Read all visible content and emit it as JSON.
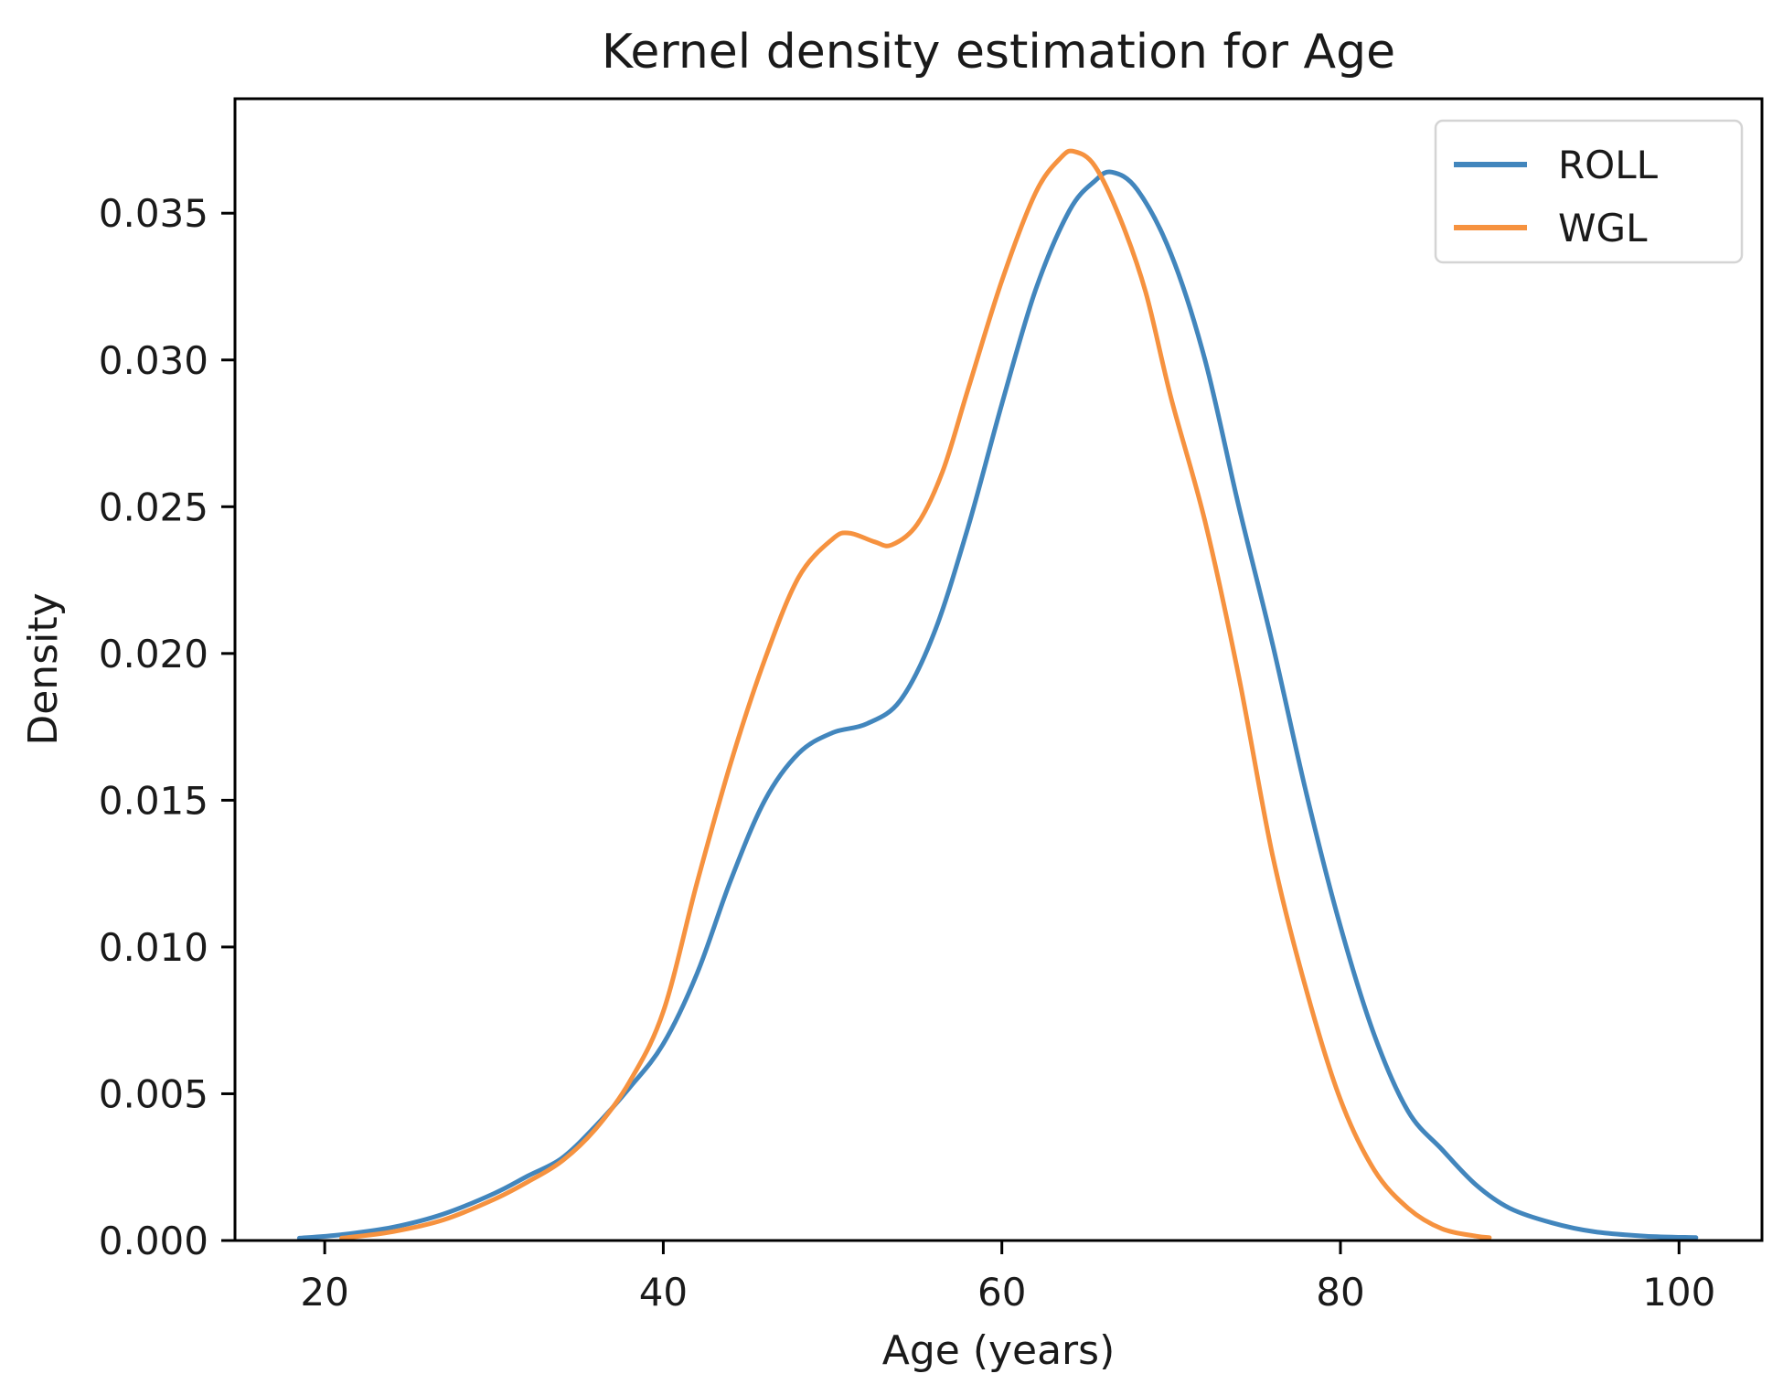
{
  "figure": {
    "title": "Kernel density estimation for Age",
    "xlabel": "Age (years)",
    "ylabel": "Density"
  },
  "chart_data": {
    "type": "line",
    "subtype": "kde",
    "title": "Kernel density estimation for Age",
    "xlabel": "Age (years)",
    "ylabel": "Density",
    "grid": false,
    "legend_position": "upper right",
    "xlim": [
      14.7,
      104.9
    ],
    "ylim": [
      0,
      0.0389
    ],
    "x_ticks": [
      20,
      40,
      60,
      80,
      100
    ],
    "x_tick_labels": [
      "20",
      "40",
      "60",
      "80",
      "100"
    ],
    "y_ticks": [
      0,
      0.005,
      0.01,
      0.015,
      0.02,
      0.025,
      0.03,
      0.035
    ],
    "y_tick_labels": [
      "0.000",
      "0.005",
      "0.010",
      "0.015",
      "0.020",
      "0.025",
      "0.030",
      "0.035"
    ],
    "series": [
      {
        "name": "ROLL",
        "color": "#4286bd",
        "peak": {
          "x": 66.5,
          "y": 0.0364
        },
        "points": [
          [
            18.5,
            8e-05
          ],
          [
            21,
            0.0002
          ],
          [
            24,
            0.00045
          ],
          [
            27,
            0.0009
          ],
          [
            30,
            0.0016
          ],
          [
            32,
            0.0022
          ],
          [
            34,
            0.0028
          ],
          [
            36,
            0.0039
          ],
          [
            38,
            0.0052
          ],
          [
            40,
            0.0067
          ],
          [
            42,
            0.0091
          ],
          [
            44,
            0.0123
          ],
          [
            46,
            0.015
          ],
          [
            48,
            0.0166
          ],
          [
            50,
            0.0173
          ],
          [
            52,
            0.0176
          ],
          [
            54,
            0.0184
          ],
          [
            56,
            0.0207
          ],
          [
            58,
            0.0243
          ],
          [
            60,
            0.0285
          ],
          [
            62,
            0.0324
          ],
          [
            64,
            0.0351
          ],
          [
            65.5,
            0.0361
          ],
          [
            66.5,
            0.0364
          ],
          [
            68,
            0.0358
          ],
          [
            70,
            0.0336
          ],
          [
            72,
            0.03
          ],
          [
            74,
            0.025
          ],
          [
            76,
            0.0203
          ],
          [
            78,
            0.0152
          ],
          [
            80,
            0.0107
          ],
          [
            82,
            0.007
          ],
          [
            84,
            0.0044
          ],
          [
            86,
            0.0031
          ],
          [
            88,
            0.0019
          ],
          [
            90,
            0.0011
          ],
          [
            92.5,
            0.0006
          ],
          [
            95,
            0.0003
          ],
          [
            98,
            0.00015
          ],
          [
            101,
            0.0001
          ]
        ]
      },
      {
        "name": "WGL",
        "color": "#f6923f",
        "peak": {
          "x": 64.3,
          "y": 0.0371
        },
        "points": [
          [
            21,
            8e-05
          ],
          [
            24,
            0.0003
          ],
          [
            27,
            0.0007
          ],
          [
            30,
            0.0014
          ],
          [
            32,
            0.002
          ],
          [
            34,
            0.0027
          ],
          [
            36,
            0.0038
          ],
          [
            38,
            0.0054
          ],
          [
            40,
            0.0078
          ],
          [
            42,
            0.0122
          ],
          [
            44,
            0.0163
          ],
          [
            46,
            0.0198
          ],
          [
            48,
            0.0226
          ],
          [
            50,
            0.0239
          ],
          [
            51,
            0.0241
          ],
          [
            52.5,
            0.0238
          ],
          [
            53.5,
            0.0237
          ],
          [
            55,
            0.0244
          ],
          [
            56.5,
            0.0262
          ],
          [
            58,
            0.029
          ],
          [
            60,
            0.0327
          ],
          [
            62,
            0.0357
          ],
          [
            63.5,
            0.0369
          ],
          [
            64.3,
            0.0371
          ],
          [
            65.5,
            0.0366
          ],
          [
            67,
            0.0348
          ],
          [
            68.5,
            0.0323
          ],
          [
            70,
            0.0287
          ],
          [
            72,
            0.0245
          ],
          [
            74,
            0.0192
          ],
          [
            76,
            0.0131
          ],
          [
            78,
            0.0085
          ],
          [
            80,
            0.0048
          ],
          [
            82,
            0.0024
          ],
          [
            84,
            0.0011
          ],
          [
            86,
            0.0004
          ],
          [
            88,
            0.00015
          ],
          [
            88.8,
            0.0001
          ]
        ]
      }
    ]
  },
  "colors": {
    "roll_line": "#4286bd",
    "wgl_line": "#f6923f",
    "axis": "#000000",
    "text": "#1a1a1a",
    "legend_border": "#d4d4d4",
    "background": "#ffffff"
  }
}
